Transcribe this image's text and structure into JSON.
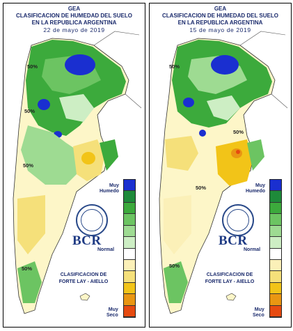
{
  "maps": [
    {
      "org": "GEA",
      "title_line1": "CLASIFICACION DE HUMEDAD DEL SUELO",
      "title_line2": "EN LA REPUBLICA ARGENTINA",
      "date": "22 de mayo de 2019"
    },
    {
      "org": "GEA",
      "title_line1": "CLASIFICACION DE HUMEDAD DEL SUELO",
      "title_line2": "EN LA REPUBLICA ARGENTINA",
      "date": "15 de mayo de 2019"
    }
  ],
  "legend": {
    "top_label_1": "Muy",
    "top_label_2": "Humedo",
    "mid_label": "Normal",
    "bottom_label_1": "Muy",
    "bottom_label_2": "Seco",
    "colors": [
      "#1a2fd0",
      "#1e8a3a",
      "#3caa3c",
      "#6cc462",
      "#9edb92",
      "#cdeec4",
      "#ffffff",
      "#fbf0b8",
      "#f5e07a",
      "#f2c418",
      "#e99612",
      "#e64a10"
    ]
  },
  "logo": {
    "text": "BCR"
  },
  "credit": {
    "line1": "CLASIFICACION DE",
    "line2": "FORTE LAY - AIELLO"
  },
  "contour_labels": {
    "left_a": "50%",
    "left_b": "50%",
    "left_c": "50%",
    "left_d": "50%",
    "right_a": "50%",
    "right_b": "50%",
    "right_c": "50%",
    "right_d": "50%"
  }
}
